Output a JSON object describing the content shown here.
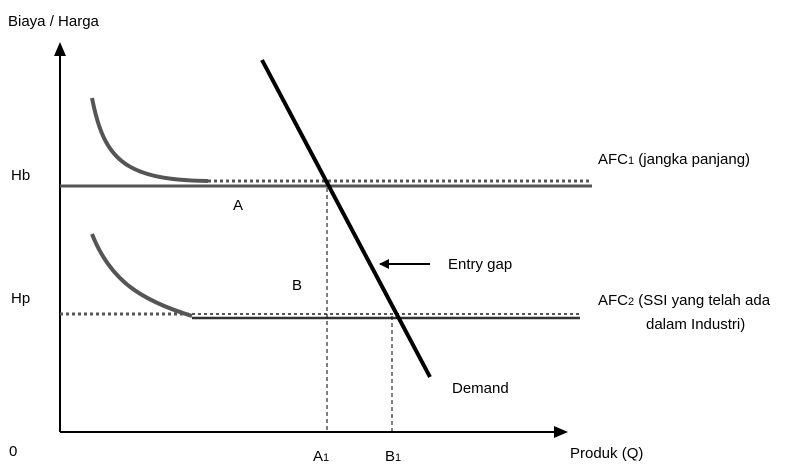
{
  "axes": {
    "y_label": "Biaya / Harga",
    "x_label": "Produk (Q)",
    "origin": "0"
  },
  "prices": {
    "hb": "Hb",
    "hp": "Hp"
  },
  "quantities": {
    "a1_letter": "A",
    "a1_sub": "1",
    "b1_letter": "B",
    "b1_sub": "1"
  },
  "regions": {
    "a": "A",
    "b": "B"
  },
  "curves": {
    "afc1_prefix": "AFC",
    "afc1_sub": "1",
    "afc1_note": " (jangka panjang)",
    "afc2_prefix": "AFC",
    "afc2_sub": "2",
    "afc2_note_line1": " (SSI yang telah ada",
    "afc2_note_line2": "dalam Industri)",
    "demand": "Demand",
    "entry_gap": "Entry gap"
  },
  "colors": {
    "axis": "#000000",
    "afc_curve": "#555555",
    "demand": "#000000"
  }
}
